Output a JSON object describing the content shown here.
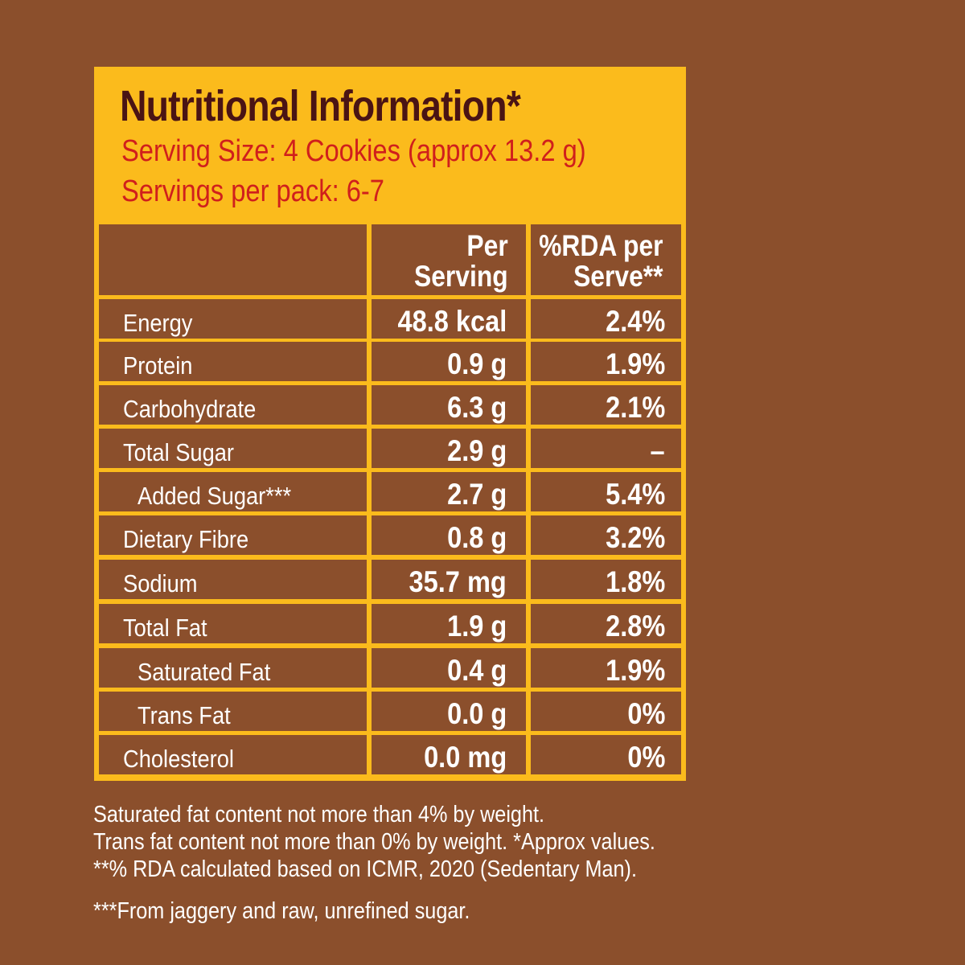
{
  "header": {
    "title": "Nutritional Information*",
    "serving_size": "Serving Size: 4 Cookies (approx 13.2 g)",
    "servings_per_pack": "Servings per pack: 6-7"
  },
  "table": {
    "columns": [
      "",
      "Per\nServing",
      "%RDA per\nServe**"
    ],
    "rows": [
      {
        "name": "Energy",
        "indent": false,
        "per_serving": "48.8 kcal",
        "rda": "2.4%"
      },
      {
        "name": "Protein",
        "indent": false,
        "per_serving": "0.9 g",
        "rda": "1.9%"
      },
      {
        "name": "Carbohydrate",
        "indent": false,
        "per_serving": "6.3 g",
        "rda": "2.1%"
      },
      {
        "name": "Total Sugar",
        "indent": false,
        "per_serving": "2.9 g",
        "rda": "–"
      },
      {
        "name": "Added Sugar***",
        "indent": true,
        "per_serving": "2.7 g",
        "rda": "5.4%"
      },
      {
        "name": "Dietary Fibre",
        "indent": false,
        "per_serving": "0.8 g",
        "rda": "3.2%"
      },
      {
        "name": "Sodium",
        "indent": false,
        "per_serving": "35.7 mg",
        "rda": "1.8%"
      },
      {
        "name": "Total Fat",
        "indent": false,
        "per_serving": "1.9 g",
        "rda": "2.8%"
      },
      {
        "name": "Saturated Fat",
        "indent": true,
        "per_serving": "0.4 g",
        "rda": "1.9%"
      },
      {
        "name": "Trans Fat",
        "indent": true,
        "per_serving": "0.0 g",
        "rda": "0%"
      },
      {
        "name": "Cholesterol",
        "indent": false,
        "per_serving": "0.0 mg",
        "rda": "0%"
      }
    ]
  },
  "footnotes": {
    "line1": "Saturated fat content not more than 4% by weight.",
    "line2": "Trans fat content not more than 0% by weight. *Approx values.",
    "line3": "**% RDA calculated based on ICMR, 2020 (Sedentary Man).",
    "line4": "***From jaggery and raw, unrefined sugar."
  },
  "colors": {
    "background": "#8b4f2c",
    "panel": "#fbbb1c",
    "title": "#4a1414",
    "subtitle": "#d01f1c",
    "cell_text": "#ffffff"
  }
}
